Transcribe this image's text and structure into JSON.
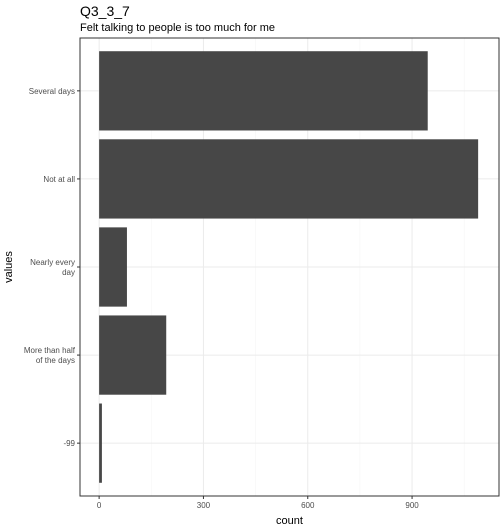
{
  "chart_data": {
    "type": "bar",
    "orientation": "horizontal",
    "title": "Q3_3_7",
    "subtitle": "Felt talking to people is too much for me",
    "xlabel": "count",
    "ylabel": "values",
    "categories": [
      "Several days",
      "Not at all",
      "Nearly every day",
      "More than half of the days",
      "-99"
    ],
    "category_label_lines": [
      [
        "Several days"
      ],
      [
        "Not at all"
      ],
      [
        "Nearly every",
        "day"
      ],
      [
        "More than half",
        "of the days"
      ],
      [
        "-99"
      ]
    ],
    "values": [
      945,
      1090,
      80,
      193,
      8
    ],
    "xlim": [
      -55,
      1150
    ],
    "x_ticks": [
      0,
      300,
      600,
      900
    ],
    "x_tick_labels": [
      "0",
      "300",
      "600",
      "900"
    ],
    "grid": true,
    "bar_color": "#474747",
    "panel_border_color": "#333333",
    "grid_major_color": "#ebebeb",
    "grid_minor_color": "#f5f5f5"
  }
}
